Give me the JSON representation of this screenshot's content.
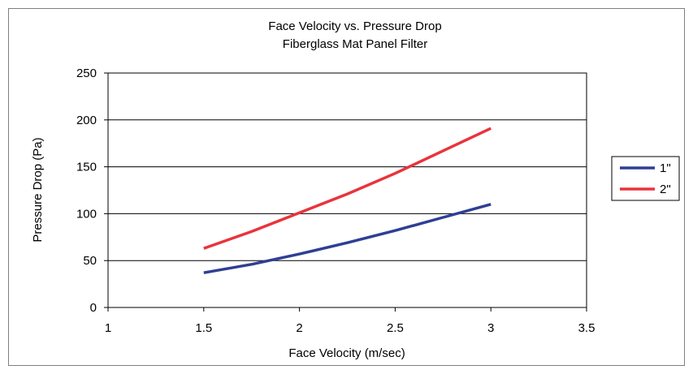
{
  "chart_data": {
    "type": "line",
    "title": "Face Velocity vs. Pressure Drop",
    "subtitle": "Fiberglass Mat Panel Filter",
    "xlabel": "Face Velocity (m/sec)",
    "ylabel": "Pressure Drop (Pa)",
    "xlim": [
      1,
      3.5
    ],
    "ylim": [
      0,
      250
    ],
    "x_ticks": [
      "1",
      "1.5",
      "2",
      "2.5",
      "3",
      "3.5"
    ],
    "y_ticks": [
      "0",
      "50",
      "100",
      "150",
      "200",
      "250"
    ],
    "x_tick_values": [
      1,
      1.5,
      2,
      2.5,
      3,
      3.5
    ],
    "y_tick_values": [
      0,
      50,
      100,
      150,
      200,
      250
    ],
    "grid": "horizontal",
    "legend_position": "right",
    "series": [
      {
        "name": "1\"",
        "color": "#2e3f94",
        "x": [
          1.5,
          1.75,
          2,
          2.25,
          2.5,
          2.75,
          3
        ],
        "y": [
          37,
          46,
          57,
          69,
          82,
          96,
          110
        ]
      },
      {
        "name": "2\"",
        "color": "#e8343c",
        "x": [
          1.5,
          1.75,
          2,
          2.25,
          2.5,
          2.75,
          3
        ],
        "y": [
          63,
          81,
          101,
          121,
          143,
          167,
          191
        ]
      }
    ]
  }
}
